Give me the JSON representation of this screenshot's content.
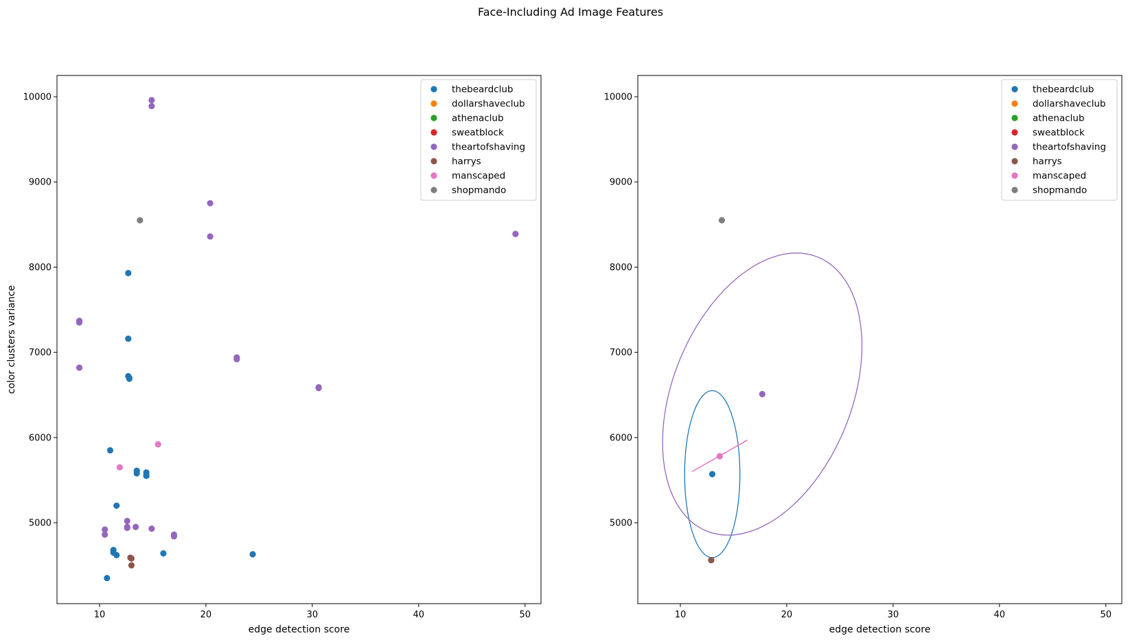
{
  "figure": {
    "title": "Face-Including Ad Image Features"
  },
  "chart_data": [
    {
      "type": "scatter",
      "title": "",
      "xlabel": "edge detection score",
      "ylabel": "color clusters variance",
      "xlim": [
        6,
        51.5
      ],
      "ylim": [
        4050,
        10250
      ],
      "xticks": [
        10,
        20,
        30,
        40,
        50
      ],
      "yticks": [
        5000,
        6000,
        7000,
        8000,
        9000,
        10000
      ],
      "grid": false,
      "legend_position": "top-right",
      "series": [
        {
          "name": "thebeardclub",
          "color": "#1f77b4",
          "points": [
            [
              12.7,
              7930
            ],
            [
              12.7,
              7160
            ],
            [
              12.7,
              6720
            ],
            [
              12.8,
              6700
            ],
            [
              12.8,
              6690
            ],
            [
              11.0,
              5850
            ],
            [
              13.5,
              5610
            ],
            [
              13.5,
              5580
            ],
            [
              14.4,
              5590
            ],
            [
              14.4,
              5560
            ],
            [
              14.4,
              5550
            ],
            [
              11.6,
              5200
            ],
            [
              11.3,
              4680
            ],
            [
              11.3,
              4650
            ],
            [
              11.6,
              4620
            ],
            [
              16.0,
              4640
            ],
            [
              24.4,
              4630
            ],
            [
              10.7,
              4350
            ]
          ]
        },
        {
          "name": "dollarshaveclub",
          "color": "#ff7f0e",
          "points": []
        },
        {
          "name": "athenaclub",
          "color": "#2ca02c",
          "points": []
        },
        {
          "name": "sweatblock",
          "color": "#d62728",
          "points": []
        },
        {
          "name": "theartofshaving",
          "color": "#9467bd",
          "points": [
            [
              14.9,
              9960
            ],
            [
              14.9,
              9890
            ],
            [
              20.4,
              8750
            ],
            [
              20.4,
              8360
            ],
            [
              49.1,
              8390
            ],
            [
              8.1,
              7370
            ],
            [
              8.1,
              7350
            ],
            [
              8.1,
              6820
            ],
            [
              22.9,
              6940
            ],
            [
              22.9,
              6920
            ],
            [
              30.6,
              6590
            ],
            [
              30.6,
              6580
            ],
            [
              10.5,
              4920
            ],
            [
              10.5,
              4860
            ],
            [
              12.6,
              5020
            ],
            [
              12.6,
              4950
            ],
            [
              12.6,
              4940
            ],
            [
              13.4,
              4950
            ],
            [
              14.9,
              4930
            ],
            [
              17.0,
              4860
            ],
            [
              17.0,
              4840
            ]
          ]
        },
        {
          "name": "harrys",
          "color": "#8c564b",
          "points": [
            [
              12.9,
              4590
            ],
            [
              13.0,
              4580
            ],
            [
              13.0,
              4500
            ]
          ]
        },
        {
          "name": "manscaped",
          "color": "#e377c2",
          "points": [
            [
              15.5,
              5920
            ],
            [
              11.9,
              5650
            ]
          ]
        },
        {
          "name": "shopmando",
          "color": "#7f7f7f",
          "points": [
            [
              13.8,
              8550
            ]
          ]
        }
      ]
    },
    {
      "type": "scatter",
      "title": "",
      "xlabel": "edge detection score",
      "ylabel": "",
      "xlim": [
        6,
        51.5
      ],
      "ylim": [
        4050,
        10250
      ],
      "xticks": [
        10,
        20,
        30,
        40,
        50
      ],
      "yticks": [
        5000,
        6000,
        7000,
        8000,
        9000,
        10000
      ],
      "grid": false,
      "legend_position": "top-right",
      "series": [
        {
          "name": "thebeardclub",
          "color": "#1f77b4",
          "points": [
            [
              13.0,
              5570
            ]
          ],
          "ellipse": {
            "cx": 13.0,
            "cy": 5570,
            "rx": 2.6,
            "ry": 980,
            "angle": 0
          }
        },
        {
          "name": "dollarshaveclub",
          "color": "#ff7f0e",
          "points": []
        },
        {
          "name": "athenaclub",
          "color": "#2ca02c",
          "points": []
        },
        {
          "name": "sweatblock",
          "color": "#d62728",
          "points": []
        },
        {
          "name": "theartofshaving",
          "color": "#9467bd",
          "points": [
            [
              17.7,
              6510
            ]
          ],
          "ellipse": {
            "cx": 17.7,
            "cy": 6510,
            "rx": 8.4,
            "ry": 1735,
            "angle": 22
          }
        },
        {
          "name": "harrys",
          "color": "#8c564b",
          "points": [
            [
              12.9,
              4560
            ]
          ]
        },
        {
          "name": "manscaped",
          "color": "#e377c2",
          "points": [
            [
              13.7,
              5780
            ]
          ],
          "segment": [
            [
              11.1,
              5600
            ],
            [
              16.3,
              5970
            ]
          ]
        },
        {
          "name": "shopmando",
          "color": "#7f7f7f",
          "points": [
            [
              13.9,
              8550
            ]
          ]
        }
      ]
    }
  ]
}
